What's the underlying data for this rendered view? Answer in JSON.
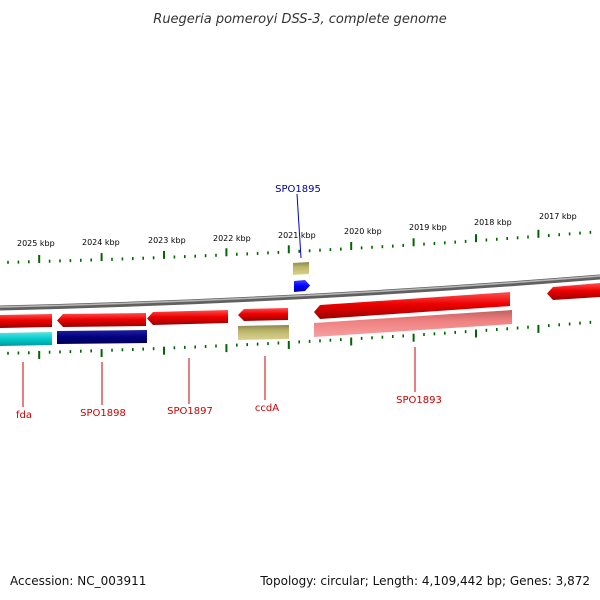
{
  "title": "Ruegeria pomeroyi DSS-3, complete genome",
  "kbp_labels": [
    "2025 kbp",
    "2024 kbp",
    "2023 kbp",
    "2022 kbp",
    "2021 kbp",
    "2020 kbp",
    "2019 kbp",
    "2018 kbp",
    "2017 kbp"
  ],
  "gene_labels": {
    "fda": "fda",
    "spo1898": "SPO1898",
    "spo1897": "SPO1897",
    "ccda": "ccdA",
    "spo1893": "SPO1893",
    "spo1895": "SPO1895"
  },
  "colors": {
    "cds_forward": "#ee0000",
    "cds_reverse_light": "#f08080",
    "cyan_feature": "#00cccc",
    "navy_feature": "#000080",
    "khaki_feature": "#bdb76b",
    "blue_feature": "#0000ff",
    "label_red": "#cc0000",
    "label_blue": "#000099",
    "tick_green": "#006600",
    "backbone": "#808080"
  },
  "footer": {
    "accession": "Accession: NC_003911",
    "summary": "Topology: circular; Length: 4,109,442 bp; Genes: 3,872"
  }
}
